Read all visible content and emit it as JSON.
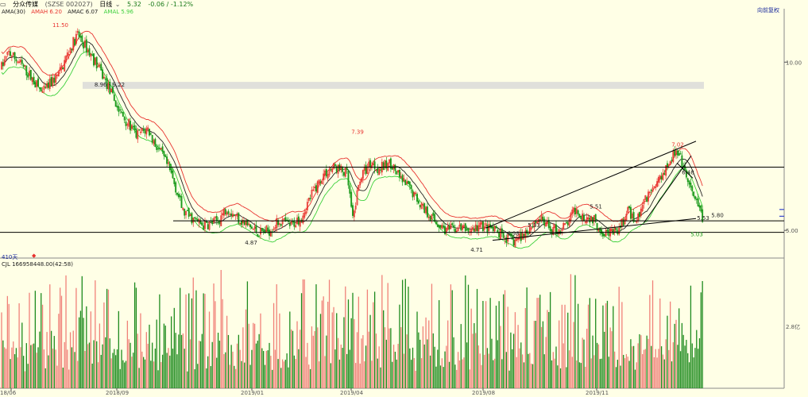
{
  "header": {
    "name": "分众传媒",
    "code": "(SZSE 002027)",
    "period": "日线",
    "price": "5.32",
    "change": "-0.06 / -1.12%"
  },
  "indicators": {
    "title": "AMA(30)",
    "amah": "AMAH 6.20",
    "amac": "AMAC 6.07",
    "amal": "AMAL 5.96"
  },
  "right_label": "向前复权",
  "day_count": "410天",
  "volume_line": {
    "title": "CJL",
    "value": "166958448.00(42:58)"
  },
  "colors": {
    "bg": "#ffffe6",
    "up": "#e8322e",
    "down": "#1c9a1c",
    "vol_up": "#f08078",
    "vol_down": "#1c8a1c",
    "amah": "#e8322e",
    "amac": "#222222",
    "amal": "#3cd03c",
    "grid": "#c8c8c8"
  },
  "chart_data": {
    "type": "candlestick",
    "x_tick_labels": [
      "18/06",
      "2018/09",
      "2019/01",
      "2019/04",
      "2019/08",
      "2019/11"
    ],
    "y_tick_labels": [
      "10.00",
      "5.00"
    ],
    "volume_tick_label": "2.8亿",
    "price_annotations": [
      "11.50",
      "8.96 - 9.22",
      "7.39",
      "7.02",
      "4.87",
      "4.71",
      "5.80",
      "5.53",
      "5.51",
      "5.33",
      "5.03",
      "4.98",
      "6.48"
    ],
    "horizontal_levels": [
      6.49,
      5.2,
      4.96
    ],
    "shaded_zone": [
      8.96,
      9.22
    ],
    "anchors": [
      [
        0,
        9.8
      ],
      [
        5,
        10.4
      ],
      [
        12,
        10.0
      ],
      [
        20,
        9.4
      ],
      [
        28,
        8.8
      ],
      [
        40,
        9.6
      ],
      [
        47,
        10.6
      ],
      [
        52,
        11.2
      ],
      [
        58,
        10.6
      ],
      [
        66,
        9.8
      ],
      [
        74,
        8.9
      ],
      [
        80,
        8.2
      ],
      [
        86,
        7.8
      ],
      [
        92,
        7.4
      ],
      [
        100,
        7.6
      ],
      [
        104,
        7.2
      ],
      [
        110,
        6.8
      ],
      [
        116,
        6.3
      ],
      [
        124,
        5.4
      ],
      [
        130,
        5.25
      ],
      [
        138,
        5.1
      ],
      [
        148,
        5.2
      ],
      [
        154,
        5.5
      ],
      [
        160,
        5.3
      ],
      [
        168,
        5.1
      ],
      [
        176,
        4.95
      ],
      [
        183,
        5.0
      ],
      [
        190,
        5.2
      ],
      [
        198,
        5.1
      ],
      [
        205,
        5.3
      ],
      [
        212,
        5.8
      ],
      [
        220,
        6.3
      ],
      [
        228,
        6.5
      ],
      [
        236,
        6.3
      ],
      [
        240,
        5.2
      ],
      [
        245,
        6.2
      ],
      [
        252,
        6.6
      ],
      [
        258,
        6.45
      ],
      [
        266,
        6.6
      ],
      [
        272,
        6.2
      ],
      [
        280,
        5.9
      ],
      [
        288,
        5.5
      ],
      [
        296,
        5.2
      ],
      [
        304,
        5.0
      ],
      [
        312,
        5.05
      ],
      [
        320,
        5.0
      ],
      [
        328,
        5.1
      ],
      [
        336,
        5.0
      ],
      [
        344,
        4.85
      ],
      [
        350,
        4.78
      ],
      [
        356,
        4.9
      ],
      [
        362,
        5.1
      ],
      [
        368,
        5.25
      ],
      [
        374,
        5.05
      ],
      [
        380,
        5.0
      ],
      [
        386,
        5.1
      ],
      [
        392,
        5.45
      ],
      [
        398,
        5.3
      ],
      [
        404,
        5.25
      ],
      [
        410,
        5.0
      ],
      [
        416,
        4.95
      ],
      [
        422,
        5.0
      ],
      [
        428,
        5.4
      ],
      [
        434,
        5.2
      ],
      [
        440,
        5.7
      ],
      [
        448,
        6.1
      ],
      [
        454,
        6.5
      ],
      [
        460,
        6.9
      ],
      [
        464,
        6.7
      ],
      [
        468,
        6.2
      ],
      [
        472,
        5.8
      ],
      [
        476,
        5.5
      ],
      [
        479,
        5.3
      ]
    ]
  }
}
